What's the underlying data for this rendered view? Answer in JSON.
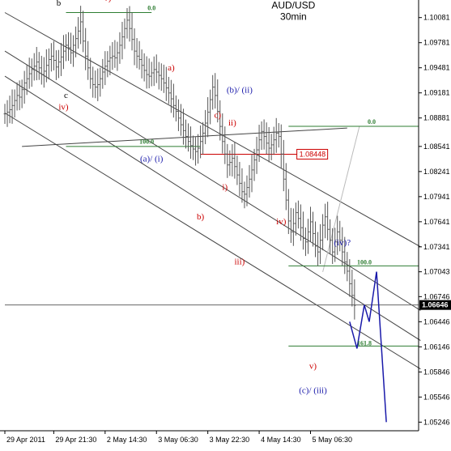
{
  "chart_data": {
    "type": "line",
    "title": "AUD/USD",
    "subtitle": "30min",
    "y_range": [
      1.05143,
      1.10291
    ],
    "y_ticks": [
      "1.10081",
      "1.09781",
      "1.09481",
      "1.09181",
      "1.08881",
      "1.08541",
      "1.08241",
      "1.07941",
      "1.07641",
      "1.07341",
      "1.07043",
      "1.06746",
      "1.06446",
      "1.06146",
      "1.05846",
      "1.05546",
      "1.05246"
    ],
    "x_ticks": [
      "29 Apr 2011",
      "29 Apr 21:30",
      "2 May 14:30",
      "3 May 06:30",
      "3 May 22:30",
      "4 May 14:30",
      "5 May 06:30"
    ],
    "current_price": "1.06646",
    "highlight_price": "1.08448",
    "price_series": {
      "start_index": 0,
      "closes": [
        1.0893,
        1.0895,
        1.0898,
        1.0903,
        1.0909,
        1.0915,
        1.0913,
        1.0922,
        1.093,
        1.0935,
        1.0941,
        1.0946,
        1.095,
        1.0955,
        1.0948,
        1.094,
        1.0944,
        1.0951,
        1.0958,
        1.0962,
        1.0957,
        1.0949,
        1.0955,
        1.0961,
        1.0968,
        1.0975,
        1.0972,
        1.0966,
        1.0975,
        1.0983,
        1.0992,
        1.1003,
        1.098,
        1.0962,
        1.0948,
        1.0935,
        1.0928,
        1.0925,
        1.0928,
        1.0935,
        1.0943,
        1.095,
        1.0956,
        1.096,
        1.0962,
        1.096,
        1.0966,
        1.0975,
        1.0985,
        1.0995,
        1.1005,
        1.0995,
        1.0982,
        1.0968,
        1.0962,
        1.0958,
        1.0951,
        1.0945,
        1.094,
        1.0938,
        1.0942,
        1.0946,
        1.0943,
        1.0939,
        1.0935,
        1.093,
        1.0924,
        1.0918,
        1.0911,
        1.0903,
        1.0896,
        1.0888,
        1.088,
        1.0873,
        1.0866,
        1.086,
        1.0855,
        1.0851,
        1.0848,
        1.0852,
        1.086,
        1.087,
        1.0882,
        1.0895,
        1.091,
        1.0925,
        1.0915,
        1.0896,
        1.0878,
        1.086,
        1.0845,
        1.0832,
        1.0835,
        1.084,
        1.083,
        1.082,
        1.081,
        1.08,
        1.0797,
        1.0805,
        1.0815,
        1.0826,
        1.0838,
        1.085,
        1.0862,
        1.0872,
        1.0866,
        1.0858,
        1.0852,
        1.0856,
        1.0862,
        1.087,
        1.0866,
        1.0845,
        1.0815,
        1.079,
        1.0765,
        1.0752,
        1.0762,
        1.0775,
        1.0768,
        1.0757,
        1.0744,
        1.074,
        1.0752,
        1.0764,
        1.075,
        1.0735,
        1.0728,
        1.0742,
        1.076,
        1.077,
        1.0755,
        1.0742,
        1.0728,
        1.074,
        1.0752,
        1.0742,
        1.0728,
        1.0716,
        1.0705,
        1.069,
        1.0676,
        1.0664
      ]
    },
    "projection": {
      "points": [
        [
          141,
          1.06446
        ],
        [
          144,
          1.06126
        ],
        [
          147,
          1.06646
        ],
        [
          149,
          1.06446
        ],
        [
          152,
          1.07044
        ],
        [
          156,
          1.05246
        ]
      ]
    },
    "horizontal_lines": [
      {
        "label": "0.0",
        "price": 1.10141,
        "x_from": 25,
        "x_to": 60
      },
      {
        "label": "100.0",
        "price": 1.08541,
        "x_from": 25,
        "x_to": 80
      },
      {
        "label": "",
        "price": 1.08448,
        "x_from": 80,
        "x_to": 132,
        "tag": "1.08448"
      },
      {
        "label": "0.0",
        "price": 1.08781,
        "x_from": 116,
        "x_to": 173
      },
      {
        "label": "100.0",
        "price": 1.07114,
        "x_from": 116,
        "x_to": 173
      },
      {
        "label": "161.8",
        "price": 1.06156,
        "x_from": 116,
        "x_to": 173
      },
      {
        "label": "",
        "price": 1.06646,
        "x_from": 0,
        "x_to": 173
      }
    ],
    "channel_lines": [
      {
        "from": [
          0,
          1.10141
        ],
        "to": [
          170,
          1.07341
        ]
      },
      {
        "from": [
          0,
          1.09681
        ],
        "to": [
          170,
          1.06581
        ]
      },
      {
        "from": [
          0,
          1.09381
        ],
        "to": [
          170,
          1.06221
        ]
      },
      {
        "from": [
          0,
          1.08941
        ],
        "to": [
          170,
          1.05881
        ]
      },
      {
        "from": [
          7,
          1.08541
        ],
        "to": [
          140,
          1.08761
        ]
      },
      {
        "from": [
          130,
          1.07041
        ],
        "to": [
          145,
          1.08781
        ]
      }
    ],
    "wave_labels": [
      {
        "text": "b",
        "color": "#000000",
        "index": 22,
        "price": 1.10222
      },
      {
        "text": "v)",
        "color": "#cc0000",
        "index": 42,
        "price": 1.10281
      },
      {
        "text": "0.0",
        "color": "#2e7d32",
        "index": 60,
        "price": 1.10171
      },
      {
        "text": "AUD/USD",
        "color": "#000000",
        "index": 118,
        "price": 1.10191
      },
      {
        "text": "30min",
        "color": "#000000",
        "index": 118,
        "price": 1.10056
      },
      {
        "text": "a)",
        "color": "#cc0000",
        "index": 68,
        "price": 1.09451
      },
      {
        "text": "(b)/ (ii)",
        "color": "#1a1aaa",
        "index": 96,
        "price": 1.09181
      },
      {
        "text": "c)",
        "color": "#cc0000",
        "index": 87,
        "price": 1.08881
      },
      {
        "text": "ii)",
        "color": "#cc0000",
        "index": 93,
        "price": 1.08791
      },
      {
        "text": "0.0",
        "color": "#2e7d32",
        "index": 150,
        "price": 1.08811
      },
      {
        "text": "c",
        "color": "#000000",
        "index": 25,
        "price": 1.09121
      },
      {
        "text": "iv)",
        "color": "#cc0000",
        "index": 24,
        "price": 1.08981
      },
      {
        "text": "100.0",
        "color": "#2e7d32",
        "index": 58,
        "price": 1.08571
      },
      {
        "text": "(a)/ (i)",
        "color": "#1a1aaa",
        "index": 60,
        "price": 1.08361
      },
      {
        "text": "i)",
        "color": "#cc0000",
        "index": 90,
        "price": 1.08021
      },
      {
        "text": "b)",
        "color": "#cc0000",
        "index": 80,
        "price": 1.07671
      },
      {
        "text": "iv)",
        "color": "#cc0000",
        "index": 113,
        "price": 1.07611
      },
      {
        "text": "(iv)?",
        "color": "#1a1aaa",
        "index": 138,
        "price": 1.07361
      },
      {
        "text": "iii)",
        "color": "#cc0000",
        "index": 96,
        "price": 1.07131
      },
      {
        "text": "100.0",
        "color": "#2e7d32",
        "index": 147,
        "price": 1.07131
      },
      {
        "text": "161.8",
        "color": "#2e7d32",
        "index": 147,
        "price": 1.06166
      },
      {
        "text": "v)",
        "color": "#cc0000",
        "index": 126,
        "price": 1.05881
      },
      {
        "text": "(c)/ (iii)",
        "color": "#1a1aaa",
        "index": 126,
        "price": 1.05591
      }
    ],
    "colors": {
      "price_bars": "#555555",
      "projection": "#1a1aaa",
      "fib_lines": "#2e7d32",
      "highlight_line": "#cc0000",
      "channel": "#333333",
      "current_price_bg": "#000000",
      "highlight_tag_border": "#cc0000"
    },
    "grid": false,
    "legend": "none"
  }
}
